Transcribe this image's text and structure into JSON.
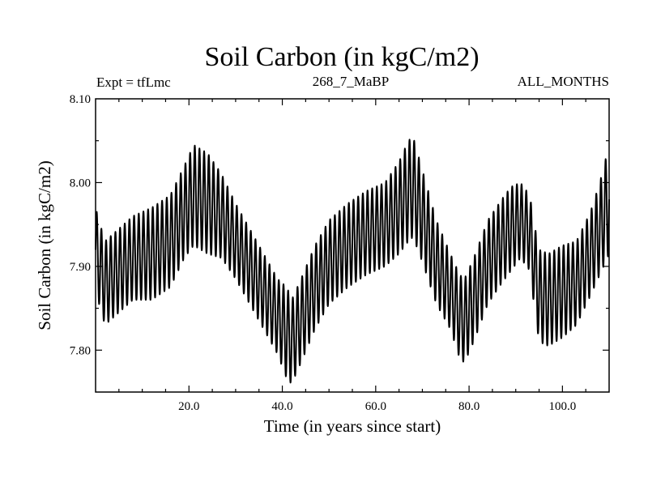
{
  "chart_data": {
    "type": "line",
    "title": "Soil Carbon (in kgC/m2)",
    "subtitle_left": "Expt = tfLmc",
    "subtitle_center": "268_7_MaBP",
    "subtitle_right": "ALL_MONTHS",
    "xlabel": "Time (in years since start)",
    "ylabel": "Soil Carbon (in kgC/m2)",
    "xlim": [
      0,
      110
    ],
    "ylim": [
      7.75,
      8.1
    ],
    "x_ticks": [
      {
        "value": 20,
        "label": "20.0"
      },
      {
        "value": 40,
        "label": "40.0"
      },
      {
        "value": 60,
        "label": "60.0"
      },
      {
        "value": 80,
        "label": "80.0"
      },
      {
        "value": 100,
        "label": "100.0"
      }
    ],
    "y_ticks": [
      {
        "value": 7.8,
        "label": "7.80"
      },
      {
        "value": 7.9,
        "label": "7.90"
      },
      {
        "value": 8.0,
        "label": "8.00"
      },
      {
        "value": 8.1,
        "label": "8.10"
      }
    ],
    "series": [
      {
        "name": "Soil Carbon",
        "description": "monthly values with annual cycle",
        "cycle_period_years": 1,
        "x": [
          0,
          1,
          2,
          4,
          8,
          12,
          16,
          19,
          21,
          24,
          27,
          30,
          33,
          36,
          39,
          41,
          42,
          44,
          47,
          50,
          54,
          58,
          62,
          65,
          67,
          68,
          70,
          73,
          76,
          78,
          79,
          81,
          84,
          87,
          89,
          91,
          93,
          94,
          95,
          97,
          100,
          103,
          106,
          108,
          110
        ],
        "mean": [
          7.92,
          7.9,
          7.88,
          7.89,
          7.91,
          7.915,
          7.93,
          7.965,
          7.985,
          7.975,
          7.96,
          7.93,
          7.9,
          7.87,
          7.84,
          7.82,
          7.81,
          7.835,
          7.875,
          7.905,
          7.925,
          7.94,
          7.95,
          7.97,
          7.99,
          7.995,
          7.96,
          7.905,
          7.87,
          7.84,
          7.835,
          7.86,
          7.905,
          7.93,
          7.945,
          7.955,
          7.94,
          7.9,
          7.865,
          7.86,
          7.87,
          7.88,
          7.915,
          7.945,
          7.98
        ],
        "amplitude": [
          0.05,
          0.05,
          0.05,
          0.05,
          0.05,
          0.055,
          0.055,
          0.055,
          0.06,
          0.06,
          0.05,
          0.045,
          0.045,
          0.045,
          0.045,
          0.055,
          0.05,
          0.05,
          0.05,
          0.05,
          0.05,
          0.05,
          0.05,
          0.055,
          0.06,
          0.06,
          0.055,
          0.05,
          0.045,
          0.05,
          0.05,
          0.05,
          0.05,
          0.05,
          0.05,
          0.045,
          0.045,
          0.05,
          0.055,
          0.055,
          0.055,
          0.05,
          0.05,
          0.055,
          0.065
        ]
      }
    ]
  }
}
